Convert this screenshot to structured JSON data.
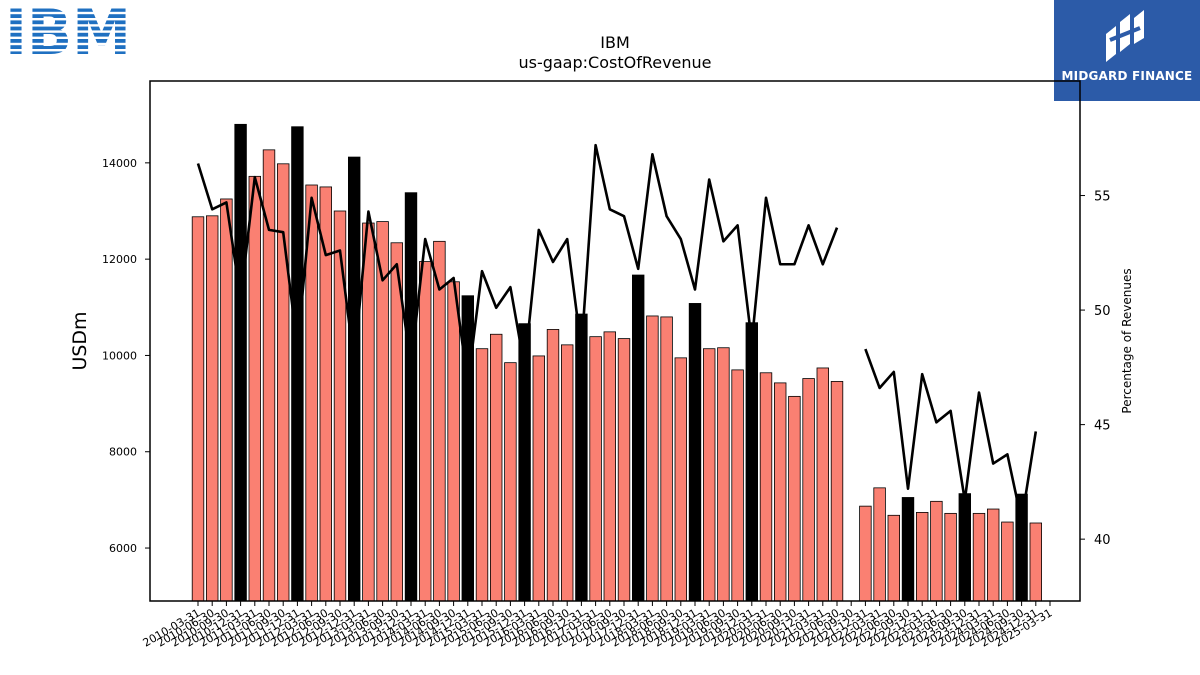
{
  "logos": {
    "left_text": "IBM",
    "right_text": "MIDGARD FINANCE"
  },
  "chart_data": {
    "type": "bar",
    "title": "IBM",
    "subtitle": "us-gaap:CostOfRevenue",
    "ylabel": "USDm",
    "y2label": "Percentage of Revenues",
    "ylim": [
      4900,
      15700
    ],
    "y2lim": [
      37.3,
      60.0
    ],
    "yticks": [
      6000,
      8000,
      10000,
      12000,
      14000
    ],
    "y2ticks": [
      40,
      45,
      50,
      55
    ],
    "colors": {
      "bar": "#fa8072",
      "highlight": "#000000",
      "line": "#000000"
    },
    "categories": [
      "2010-03-31",
      "2010-06-30",
      "2010-09-30",
      "2010-12-31",
      "2011-03-31",
      "2011-06-30",
      "2011-09-30",
      "2011-12-31",
      "2012-03-31",
      "2012-06-30",
      "2012-09-30",
      "2012-12-31",
      "2013-03-31",
      "2013-06-30",
      "2013-09-30",
      "2013-12-31",
      "2014-03-31",
      "2014-06-30",
      "2014-09-30",
      "2014-12-31",
      "2015-03-31",
      "2015-06-30",
      "2015-09-30",
      "2015-12-31",
      "2016-03-31",
      "2016-06-30",
      "2016-09-30",
      "2016-12-31",
      "2017-03-31",
      "2017-06-30",
      "2017-09-30",
      "2017-12-31",
      "2018-03-31",
      "2018-06-30",
      "2018-09-30",
      "2018-12-31",
      "2019-03-31",
      "2019-06-30",
      "2019-09-30",
      "2019-12-31",
      "2020-03-31",
      "2020-06-30",
      "2020-09-30",
      "2020-12-31",
      "2021-03-31",
      "2021-06-30",
      "2021-09-30",
      "2021-12-31",
      "2022-03-31",
      "2022-06-30",
      "2022-09-30",
      "2022-12-31",
      "2023-03-31",
      "2023-06-30",
      "2023-09-30",
      "2023-12-31",
      "2024-03-31",
      "2024-06-30",
      "2024-09-30",
      "2024-12-31",
      "2025-03-31"
    ],
    "values": [
      12880,
      12900,
      13250,
      14800,
      13720,
      14270,
      13980,
      14750,
      13540,
      13500,
      13000,
      14120,
      12750,
      12780,
      12340,
      13380,
      11950,
      12370,
      11530,
      11240,
      10140,
      10440,
      9850,
      10660,
      9990,
      10540,
      10220,
      10860,
      10390,
      10490,
      10350,
      11670,
      10820,
      10800,
      9950,
      11080,
      10140,
      10160,
      9700,
      10680,
      9640,
      9430,
      9150,
      9520,
      9740,
      9460,
      null,
      6870,
      7250,
      6680,
      7050,
      6740,
      6970,
      6720,
      7130,
      6720,
      6810,
      6540,
      7120,
      6520,
      null
    ],
    "highlight": [
      false,
      false,
      false,
      true,
      false,
      false,
      false,
      true,
      false,
      false,
      false,
      true,
      false,
      false,
      false,
      true,
      false,
      false,
      false,
      true,
      false,
      false,
      false,
      true,
      false,
      false,
      false,
      true,
      false,
      false,
      false,
      true,
      false,
      false,
      false,
      true,
      false,
      false,
      false,
      true,
      false,
      false,
      false,
      false,
      false,
      false,
      false,
      false,
      false,
      false,
      true,
      false,
      false,
      false,
      true,
      false,
      false,
      false,
      true,
      false,
      false
    ],
    "series": [
      {
        "values": [
          56.4,
          54.4,
          54.7,
          50.5,
          55.8,
          53.5,
          53.4,
          48.4,
          54.9,
          52.4,
          52.6,
          47.7,
          54.3,
          51.3,
          52.0,
          47.6,
          53.1,
          50.9,
          51.4,
          46.8,
          51.7,
          50.1,
          51.0,
          47.5,
          53.5,
          52.1,
          53.1,
          48.3,
          57.2,
          54.4,
          54.1,
          51.8,
          56.8,
          54.1,
          53.1,
          50.9,
          55.7,
          53.0,
          53.7,
          48.6,
          54.9,
          52.0,
          52.0,
          53.7,
          52.0,
          53.6,
          null,
          48.3,
          46.6,
          47.3,
          42.2,
          47.2,
          45.1,
          45.6,
          41.7,
          46.4,
          43.3,
          43.7,
          40.8,
          44.7,
          null
        ]
      }
    ]
  }
}
